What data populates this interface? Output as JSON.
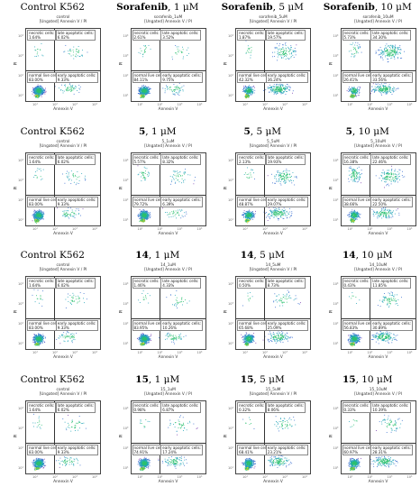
{
  "axis": {
    "x": "Annexin V",
    "y": "PI",
    "ticks": [
      "10¹",
      "10²",
      "10³",
      "10⁴"
    ]
  },
  "panels": [
    {
      "heading_bold": "",
      "heading_rest": "Control K562",
      "file": "control",
      "gate": "[Ungated] Annexin V / PI",
      "q": {
        "necrotic": "1.64%",
        "late": "6.02%",
        "normal": "83.00%",
        "early": "9.33%"
      }
    },
    {
      "heading_bold": "Sorafenib",
      "heading_rest": ", 1 μM",
      "file": "sorafenib_1uM",
      "gate": "[Ungated] Annexin V / PI",
      "q": {
        "necrotic": "2.61%",
        "late": "3.52%",
        "normal": "84.11%",
        "early": "9.75%"
      }
    },
    {
      "heading_bold": "Sorafenib",
      "heading_rest": ", 5 μM",
      "file": "sorafenib_5uM",
      "gate": "[Ungated] Annexin V / PI",
      "q": {
        "necrotic": "1.87%",
        "late": "19.57%",
        "normal": "42.32%",
        "early": "36.24%"
      }
    },
    {
      "heading_bold": "Sorafenib",
      "heading_rest": ", 10 μM",
      "file": "sorafenib_10uM",
      "gate": "[Ungated] Annexin V / PI",
      "q": {
        "necrotic": "5.73%",
        "late": "34.30%",
        "normal": "26.41%",
        "early": "33.56%"
      }
    },
    {
      "heading_bold": "",
      "heading_rest": "Control K562",
      "file": "control",
      "gate": "[Ungated] Annexin V / PI",
      "q": {
        "necrotic": "1.64%",
        "late": "6.02%",
        "normal": "83.00%",
        "early": "9.33%"
      }
    },
    {
      "heading_bold": "5",
      "heading_rest": ", 1 μM",
      "file": "5_1uM",
      "gate": "[Ungated] Annexin V / PI",
      "q": {
        "necrotic": "5.57%",
        "late": "8.32%",
        "normal": "79.72%",
        "early": "6.39%"
      }
    },
    {
      "heading_bold": "5",
      "heading_rest": ", 5 μM",
      "file": "5_5uM",
      "gate": "[Ungated] Annexin V / PI",
      "q": {
        "necrotic": "2.13%",
        "late": "19.93%",
        "normal": "48.87%",
        "early": "29.07%"
      }
    },
    {
      "heading_bold": "5",
      "heading_rest": ", 10 μM",
      "file": "5_10uM",
      "gate": "[Ungated] Annexin V / PI",
      "q": {
        "necrotic": "16.38%",
        "late": "22.46%",
        "normal": "38.66%",
        "early": "22.50%"
      }
    },
    {
      "heading_bold": "",
      "heading_rest": "Control K562",
      "file": "control",
      "gate": "[Ungated] Annexin V / PI",
      "q": {
        "necrotic": "1.64%",
        "late": "6.02%",
        "normal": "83.00%",
        "early": "9.33%"
      }
    },
    {
      "heading_bold": "14",
      "heading_rest": ", 1 μM",
      "file": "14_1uM",
      "gate": "[Ungated] Annexin V / PI",
      "q": {
        "necrotic": "1.46%",
        "late": "4.33%",
        "normal": "83.95%",
        "early": "10.26%"
      }
    },
    {
      "heading_bold": "14",
      "heading_rest": ", 5 μM",
      "file": "14_5uM",
      "gate": "[Ungated] Annexin V / PI",
      "q": {
        "necrotic": "0.50%",
        "late": "8.73%",
        "normal": "65.68%",
        "early": "25.09%"
      }
    },
    {
      "heading_bold": "14",
      "heading_rest": ", 10 μM",
      "file": "14_10uM",
      "gate": "[Ungated] Annexin V / PI",
      "q": {
        "necrotic": "0.43%",
        "late": "11.85%",
        "normal": "56.83%",
        "early": "30.89%"
      }
    },
    {
      "heading_bold": "",
      "heading_rest": "Control K562",
      "file": "control",
      "gate": "[Ungated] Annexin V / PI",
      "q": {
        "necrotic": "1.64%",
        "late": "6.02%",
        "normal": "83.00%",
        "early": "9.33%"
      }
    },
    {
      "heading_bold": "15",
      "heading_rest": ", 1 μM",
      "file": "15_1uM",
      "gate": "[Ungated] Annexin V / PI",
      "q": {
        "necrotic": "0.98%",
        "late": "6.87%",
        "normal": "74.91%",
        "early": "17.24%"
      }
    },
    {
      "heading_bold": "15",
      "heading_rest": ", 5 μM",
      "file": "15_5uM",
      "gate": "[Ungated] Annexin V / PI",
      "q": {
        "necrotic": "0.32%",
        "late": "8.06%",
        "normal": "68.41%",
        "early": "23.21%"
      }
    },
    {
      "heading_bold": "15",
      "heading_rest": ", 10 μM",
      "file": "15_10uM",
      "gate": "[Ungated] Annexin V / PI",
      "q": {
        "necrotic": "0.33%",
        "late": "10.39%",
        "normal": "60.97%",
        "early": "28.31%"
      }
    }
  ],
  "labels": {
    "necrotic": "necrotic cells:",
    "late": "late apoptotic cells:",
    "normal": "normal live cells:",
    "early": "early apoptotic cells:"
  }
}
